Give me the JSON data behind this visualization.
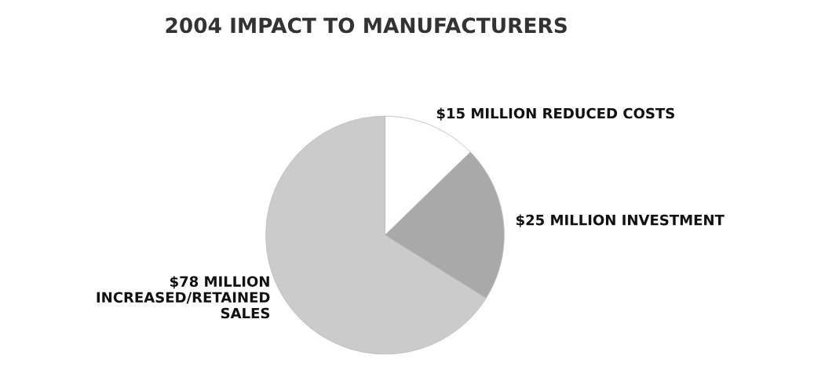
{
  "chart_data": {
    "type": "pie",
    "title": "2004 IMPACT TO MANUFACTURERS",
    "categories": [
      "$15 MILLION REDUCED COSTS",
      "$25 MILLION INVESTMENT",
      "$78 MILLION\nINCREASED/RETAINED\nSALES"
    ],
    "values": [
      15,
      25,
      78
    ],
    "colors": [
      "#ffffff",
      "#a9a9a9",
      "#cbcbcb"
    ]
  }
}
